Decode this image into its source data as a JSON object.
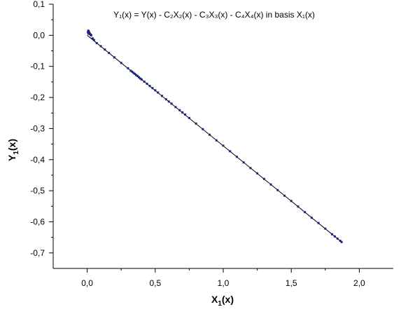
{
  "chart_data": {
    "type": "scatter",
    "title": "Y₁(x) = Y(x) - C₂X₂(x) - C₃X₃(x) - C₄X₄(x) in basis X₁(x)",
    "xlabel": {
      "main": "X",
      "sub": "1",
      "rest": "(x)"
    },
    "ylabel": {
      "main": "Y",
      "sub": "1",
      "rest": "(x)"
    },
    "xlim": [
      -0.25,
      2.25
    ],
    "ylim": [
      -0.75,
      0.1
    ],
    "xticks": [
      {
        "value": 0.0,
        "label": "0,0"
      },
      {
        "value": 0.5,
        "label": "0,5"
      },
      {
        "value": 1.0,
        "label": "1,0"
      },
      {
        "value": 1.5,
        "label": "1,5"
      },
      {
        "value": 2.0,
        "label": "2,0"
      }
    ],
    "yticks": [
      {
        "value": 0.1,
        "label": "0,1"
      },
      {
        "value": 0.0,
        "label": "0,0"
      },
      {
        "value": -0.1,
        "label": "-0,1"
      },
      {
        "value": -0.2,
        "label": "-0,2"
      },
      {
        "value": -0.3,
        "label": "-0,3"
      },
      {
        "value": -0.4,
        "label": "-0,4"
      },
      {
        "value": -0.5,
        "label": "-0,5"
      },
      {
        "value": -0.6,
        "label": "-0,6"
      },
      {
        "value": -0.7,
        "label": "-0,7"
      }
    ],
    "grid": false,
    "colors": {
      "points": "#1a237e",
      "fit_line": "#000000",
      "axes": "#000000"
    },
    "fit_line": {
      "x": [
        0.0,
        1.87
      ],
      "y": [
        0.0,
        -0.665
      ]
    },
    "series": [
      {
        "x": [
          0.005,
          0.008,
          0.01,
          0.012,
          0.015,
          0.02,
          0.025,
          0.03,
          0.04,
          0.05,
          0.07,
          0.1,
          0.13,
          0.16,
          0.2,
          0.25,
          0.3,
          0.32,
          0.33,
          0.34,
          0.35,
          0.36,
          0.37,
          0.38,
          0.39,
          0.4,
          0.42,
          0.44,
          0.46,
          0.48,
          0.5,
          0.52,
          0.55,
          0.58,
          0.6,
          0.62,
          0.65,
          0.68,
          0.7,
          0.72,
          0.75,
          0.8,
          0.85,
          0.9,
          0.95,
          1.0,
          1.05,
          1.1,
          1.15,
          1.2,
          1.25,
          1.3,
          1.35,
          1.4,
          1.45,
          1.5,
          1.55,
          1.6,
          1.65,
          1.7,
          1.75,
          1.8,
          1.82,
          1.84,
          1.86,
          1.87
        ],
        "y": [
          0.01,
          0.015,
          0.005,
          0.012,
          0.008,
          0.005,
          0.002,
          0.0,
          -0.01,
          -0.015,
          -0.025,
          -0.035,
          -0.046,
          -0.057,
          -0.071,
          -0.089,
          -0.106,
          -0.114,
          -0.117,
          -0.121,
          -0.124,
          -0.128,
          -0.131,
          -0.135,
          -0.139,
          -0.142,
          -0.149,
          -0.156,
          -0.163,
          -0.17,
          -0.177,
          -0.184,
          -0.195,
          -0.206,
          -0.213,
          -0.22,
          -0.231,
          -0.241,
          -0.248,
          -0.255,
          -0.266,
          -0.284,
          -0.302,
          -0.32,
          -0.338,
          -0.355,
          -0.373,
          -0.391,
          -0.409,
          -0.427,
          -0.444,
          -0.462,
          -0.48,
          -0.498,
          -0.516,
          -0.533,
          -0.551,
          -0.569,
          -0.587,
          -0.604,
          -0.622,
          -0.64,
          -0.647,
          -0.654,
          -0.661,
          -0.665
        ]
      }
    ]
  }
}
